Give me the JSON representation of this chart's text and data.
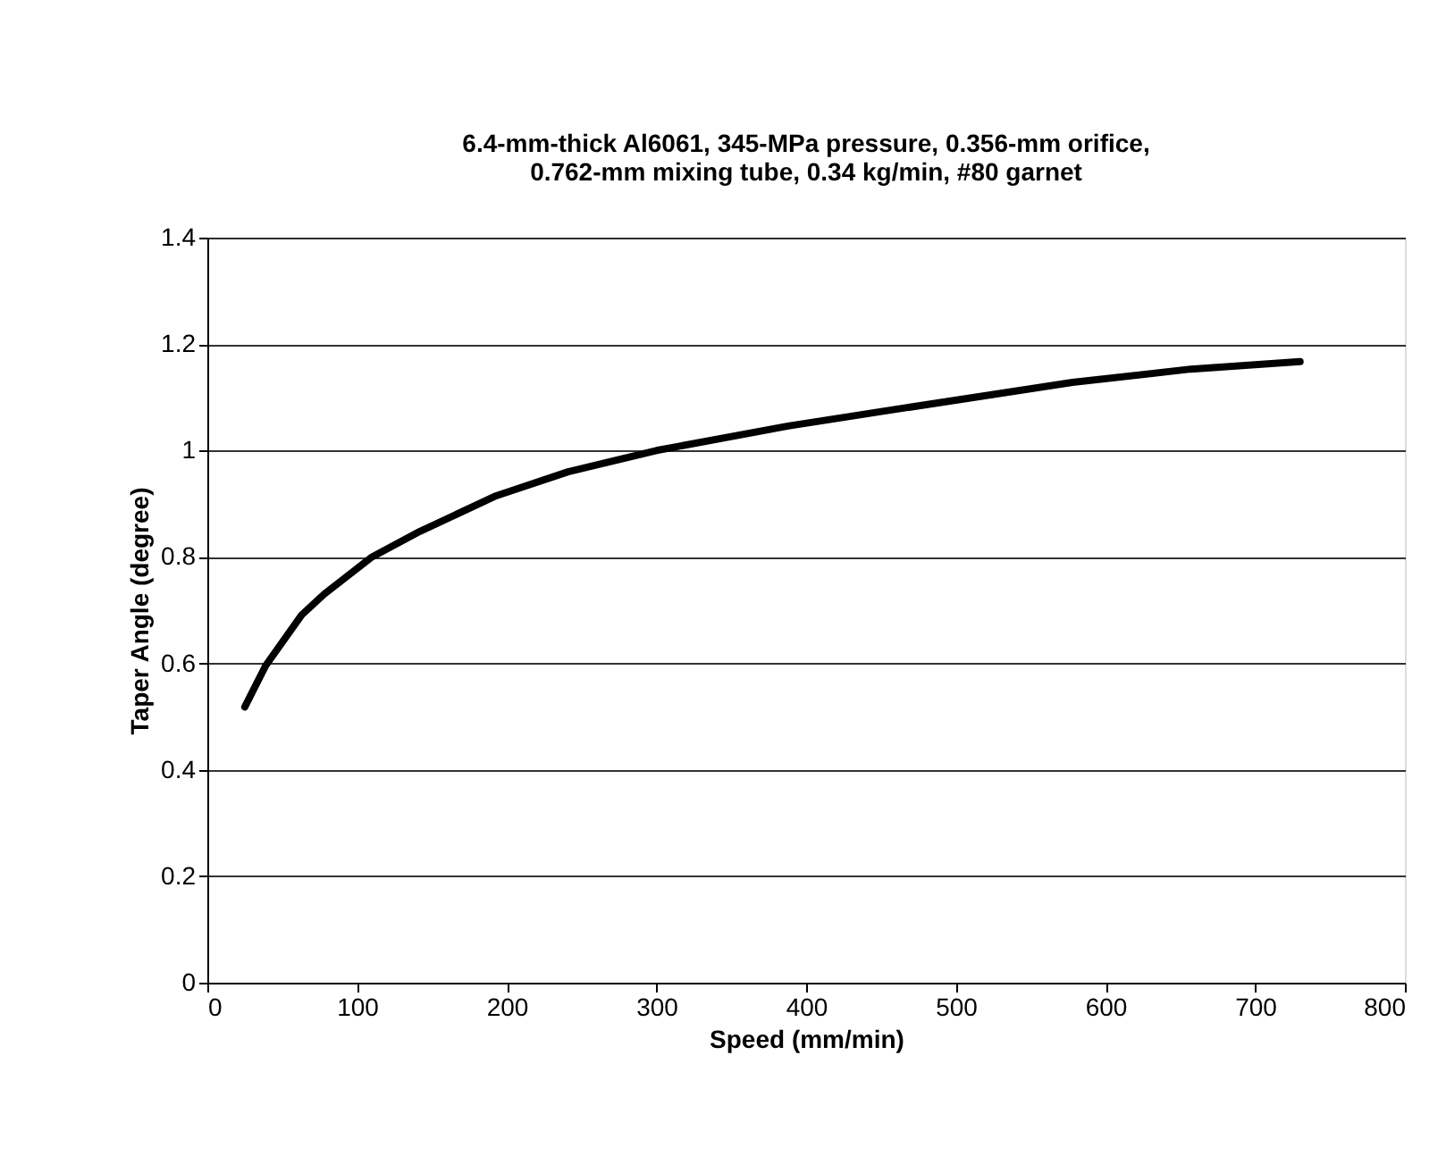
{
  "chart_data": {
    "type": "line",
    "title": [
      "6.4-mm-thick Al6061, 345-MPa pressure, 0.356-mm orifice,",
      "0.762-mm mixing tube, 0.34 kg/min, #80 garnet"
    ],
    "xlabel": "Speed (mm/min)",
    "ylabel": "Taper Angle (degree)",
    "series": [
      {
        "color": "#000000",
        "x": [
          25,
          39,
          63,
          78,
          110,
          142,
          193,
          241,
          300,
          388,
          459,
          578,
          657,
          730
        ],
        "values": [
          0.518,
          0.596,
          0.691,
          0.73,
          0.8,
          0.848,
          0.915,
          0.96,
          1.0,
          1.046,
          1.077,
          1.128,
          1.153,
          1.167
        ]
      }
    ],
    "xlim": [
      0,
      800
    ],
    "xticks": [
      0,
      100,
      200,
      300,
      400,
      500,
      600,
      700,
      800
    ],
    "ylim": [
      0,
      1.4
    ],
    "yticks": [
      0,
      0.2,
      0.4,
      0.6,
      0.8,
      1,
      1.2,
      1.4
    ],
    "grid": "y",
    "marker": "none",
    "line_style": "solid"
  }
}
